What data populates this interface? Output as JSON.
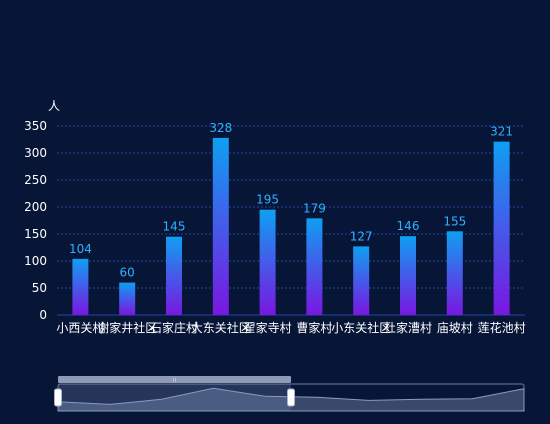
{
  "chart_data": {
    "type": "bar",
    "ylabel": "人",
    "ylim": [
      0,
      350
    ],
    "yticks": [
      0,
      50,
      100,
      150,
      200,
      250,
      300,
      350
    ],
    "grid": true,
    "categories": [
      "小西关村",
      "谢家井社区",
      "石家庄村",
      "大东关社区",
      "翟家寺村",
      "曹家村",
      "小东关社区",
      "杜家漕村",
      "庙坡村",
      "莲花池村"
    ],
    "values": [
      104,
      60,
      145,
      328,
      195,
      179,
      127,
      146,
      155,
      321
    ],
    "zoom_window": [
      0,
      50
    ]
  },
  "colors": {
    "background": "#071637",
    "bar_top": "#0f9ff2",
    "bar_bottom": "#7a16e0",
    "data_label": "#2fb0ff",
    "axis_text": "#ffffff",
    "grid": "#2346a8"
  }
}
